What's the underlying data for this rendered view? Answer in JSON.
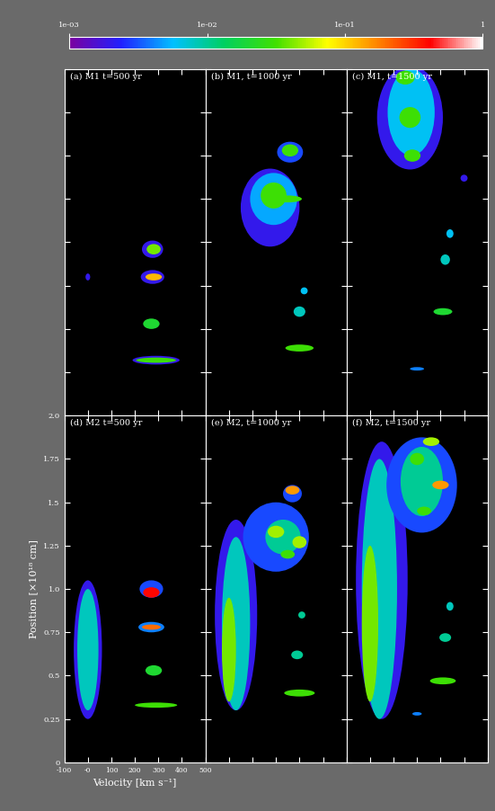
{
  "colorbar": {
    "range": [
      0.001,
      1
    ],
    "log": true,
    "ticks": [
      {
        "value": 0.001,
        "label": "1e-03"
      },
      {
        "value": 0.01,
        "label": "1e-02"
      },
      {
        "value": 0.1,
        "label": "1e-01"
      },
      1
    ]
  },
  "chart_data": [
    {
      "type": "heatmap",
      "title": "(a) M1 t=500 yr",
      "tick_labels": false,
      "xlim": [
        -100,
        500
      ],
      "ylim": [
        0,
        2.0
      ],
      "xticks": [
        -100,
        {
          "value": 0,
          "label": "-0"
        },
        100,
        200,
        300,
        400,
        500
      ],
      "yticks": [
        0,
        0.25,
        0.5,
        0.75,
        {
          "value": 1.0,
          "label": "1.0"
        },
        1.25,
        1.5,
        1.75,
        {
          "value": 2.0,
          "label": "2.0"
        }
      ],
      "blobs": [
        {
          "v": 275,
          "p": 0.96,
          "dv": 90,
          "dp": 0.1,
          "value": 0.002
        },
        {
          "v": 280,
          "p": 0.96,
          "dv": 60,
          "dp": 0.06,
          "value": 0.04
        },
        {
          "v": 275,
          "p": 0.8,
          "dv": 100,
          "dp": 0.08,
          "value": 0.002
        },
        {
          "v": 280,
          "p": 0.8,
          "dv": 70,
          "dp": 0.04,
          "value": 0.12
        },
        {
          "v": 270,
          "p": 0.53,
          "dv": 70,
          "dp": 0.06,
          "value": 0.02
        },
        {
          "v": 290,
          "p": 0.32,
          "dv": 200,
          "dp": 0.05,
          "value": 0.002
        },
        {
          "v": 290,
          "p": 0.32,
          "dv": 170,
          "dp": 0.03,
          "value": 0.03
        },
        {
          "v": 0,
          "p": 0.8,
          "dv": 20,
          "dp": 0.04,
          "value": 0.002
        }
      ]
    },
    {
      "type": "heatmap",
      "title": "(b) M1, t=1000 yr",
      "tick_labels": false,
      "xlim": [
        -100,
        500
      ],
      "ylim": [
        0,
        2.0
      ],
      "xticks": [
        -100,
        {
          "value": 0,
          "label": "-0"
        },
        100,
        200,
        300,
        400,
        500
      ],
      "yticks": [
        0,
        0.25,
        0.5,
        0.75,
        {
          "value": 1.0,
          "label": "1.0"
        },
        1.25,
        1.5,
        1.75,
        {
          "value": 2.0,
          "label": "2.0"
        }
      ],
      "blobs": [
        {
          "v": 175,
          "p": 1.2,
          "dv": 250,
          "dp": 0.45,
          "value": 0.002
        },
        {
          "v": 190,
          "p": 1.25,
          "dv": 200,
          "dp": 0.3,
          "value": 0.005
        },
        {
          "v": 190,
          "p": 1.27,
          "dv": 110,
          "dp": 0.15,
          "value": 0.03
        },
        {
          "v": 250,
          "p": 1.25,
          "dv": 120,
          "dp": 0.04,
          "value": 0.03
        },
        {
          "v": 260,
          "p": 1.52,
          "dv": 110,
          "dp": 0.12,
          "value": 0.003
        },
        {
          "v": 260,
          "p": 1.53,
          "dv": 70,
          "dp": 0.07,
          "value": 0.03
        },
        {
          "v": 320,
          "p": 0.72,
          "dv": 30,
          "dp": 0.04,
          "value": 0.006
        },
        {
          "v": 300,
          "p": 0.6,
          "dv": 50,
          "dp": 0.06,
          "value": 0.008
        },
        {
          "v": 300,
          "p": 0.39,
          "dv": 120,
          "dp": 0.04,
          "value": 0.03
        }
      ]
    },
    {
      "type": "heatmap",
      "title": "(c) M1, t=1500 yr",
      "tick_labels": false,
      "xlim": [
        -100,
        500
      ],
      "ylim": [
        0,
        2.0
      ],
      "xticks": [
        -100,
        {
          "value": 0,
          "label": "-0"
        },
        100,
        200,
        300,
        400,
        500
      ],
      "yticks": [
        0,
        0.25,
        0.5,
        0.75,
        {
          "value": 1.0,
          "label": "1.0"
        },
        1.25,
        1.5,
        1.75,
        {
          "value": 2.0,
          "label": "2.0"
        }
      ],
      "blobs": [
        {
          "v": 170,
          "p": 1.72,
          "dv": 280,
          "dp": 0.6,
          "value": 0.002
        },
        {
          "v": 175,
          "p": 1.75,
          "dv": 200,
          "dp": 0.5,
          "value": 0.006
        },
        {
          "v": 150,
          "p": 1.95,
          "dv": 80,
          "dp": 0.08,
          "value": 0.03
        },
        {
          "v": 170,
          "p": 1.72,
          "dv": 90,
          "dp": 0.12,
          "value": 0.03
        },
        {
          "v": 180,
          "p": 1.5,
          "dv": 70,
          "dp": 0.07,
          "value": 0.03
        },
        {
          "v": 400,
          "p": 1.37,
          "dv": 30,
          "dp": 0.04,
          "value": 0.002
        },
        {
          "v": 340,
          "p": 1.05,
          "dv": 30,
          "dp": 0.05,
          "value": 0.006
        },
        {
          "v": 320,
          "p": 0.9,
          "dv": 40,
          "dp": 0.06,
          "value": 0.008
        },
        {
          "v": 310,
          "p": 0.6,
          "dv": 80,
          "dp": 0.04,
          "value": 0.02
        },
        {
          "v": 200,
          "p": 0.27,
          "dv": 60,
          "dp": 0.02,
          "value": 0.004
        }
      ]
    },
    {
      "type": "heatmap",
      "title": "(d) M2 t=500 yr",
      "xlabel": "Velocity [km s⁻¹]",
      "ylabel": "Position [×10¹⁸ cm]",
      "xlim": [
        -100,
        500
      ],
      "ylim": [
        0,
        2.0
      ],
      "xticks": [
        -100,
        {
          "value": 0,
          "label": "-0"
        },
        100,
        200,
        300,
        400,
        500
      ],
      "yticks": [
        0,
        0.25,
        0.5,
        0.75,
        {
          "value": 1.0,
          "label": "1.0"
        },
        1.25,
        1.5,
        1.75,
        {
          "value": 2.0,
          "label": "2.0"
        }
      ],
      "blobs": [
        {
          "v": 0,
          "p": 0.65,
          "dv": 120,
          "dp": 0.8,
          "value": 0.002
        },
        {
          "v": 0,
          "p": 0.65,
          "dv": 90,
          "dp": 0.7,
          "value": 0.008
        },
        {
          "v": 270,
          "p": 1.0,
          "dv": 100,
          "dp": 0.1,
          "value": 0.003
        },
        {
          "v": 270,
          "p": 0.98,
          "dv": 70,
          "dp": 0.06,
          "value": 0.4
        },
        {
          "v": 270,
          "p": 0.78,
          "dv": 110,
          "dp": 0.06,
          "value": 0.004
        },
        {
          "v": 270,
          "p": 0.78,
          "dv": 80,
          "dp": 0.03,
          "value": 0.2
        },
        {
          "v": 280,
          "p": 0.53,
          "dv": 70,
          "dp": 0.06,
          "value": 0.02
        },
        {
          "v": 290,
          "p": 0.33,
          "dv": 180,
          "dp": 0.03,
          "value": 0.03
        }
      ]
    },
    {
      "type": "heatmap",
      "title": "(e) M2, t=1000 yr",
      "tick_labels": false,
      "xlim": [
        -100,
        500
      ],
      "ylim": [
        0,
        2.0
      ],
      "xticks": [
        -100,
        {
          "value": 0,
          "label": "-0"
        },
        100,
        200,
        300,
        400,
        500
      ],
      "yticks": [
        0,
        0.25,
        0.5,
        0.75,
        {
          "value": 1.0,
          "label": "1.0"
        },
        1.25,
        1.5,
        1.75,
        {
          "value": 2.0,
          "label": "2.0"
        }
      ],
      "blobs": [
        {
          "v": 30,
          "p": 0.85,
          "dv": 180,
          "dp": 1.1,
          "value": 0.002
        },
        {
          "v": 30,
          "p": 0.8,
          "dv": 120,
          "dp": 1.0,
          "value": 0.008
        },
        {
          "v": 0,
          "p": 0.65,
          "dv": 60,
          "dp": 0.6,
          "value": 0.04
        },
        {
          "v": 200,
          "p": 1.3,
          "dv": 280,
          "dp": 0.4,
          "value": 0.003
        },
        {
          "v": 230,
          "p": 1.3,
          "dv": 150,
          "dp": 0.2,
          "value": 0.01
        },
        {
          "v": 200,
          "p": 1.33,
          "dv": 70,
          "dp": 0.07,
          "value": 0.05
        },
        {
          "v": 300,
          "p": 1.27,
          "dv": 60,
          "dp": 0.07,
          "value": 0.05
        },
        {
          "v": 250,
          "p": 1.2,
          "dv": 60,
          "dp": 0.05,
          "value": 0.03
        },
        {
          "v": 270,
          "p": 1.55,
          "dv": 80,
          "dp": 0.1,
          "value": 0.003
        },
        {
          "v": 270,
          "p": 1.57,
          "dv": 60,
          "dp": 0.05,
          "value": 0.15
        },
        {
          "v": 310,
          "p": 0.85,
          "dv": 30,
          "dp": 0.04,
          "value": 0.01
        },
        {
          "v": 290,
          "p": 0.62,
          "dv": 50,
          "dp": 0.05,
          "value": 0.01
        },
        {
          "v": 300,
          "p": 0.4,
          "dv": 130,
          "dp": 0.04,
          "value": 0.03
        }
      ]
    },
    {
      "type": "heatmap",
      "title": "(f) M2, t=1500 yr",
      "tick_labels": false,
      "xlim": [
        -100,
        500
      ],
      "ylim": [
        0,
        2.0
      ],
      "xticks": [
        -100,
        {
          "value": 0,
          "label": "-0"
        },
        100,
        200,
        300,
        400,
        500
      ],
      "yticks": [
        0,
        0.25,
        0.5,
        0.75,
        {
          "value": 1.0,
          "label": "1.0"
        },
        1.25,
        1.5,
        1.75,
        {
          "value": 2.0,
          "label": "2.0"
        }
      ],
      "blobs": [
        {
          "v": 50,
          "p": 1.05,
          "dv": 220,
          "dp": 1.6,
          "value": 0.002
        },
        {
          "v": 40,
          "p": 1.0,
          "dv": 150,
          "dp": 1.5,
          "value": 0.008
        },
        {
          "v": 0,
          "p": 0.8,
          "dv": 70,
          "dp": 0.9,
          "value": 0.04
        },
        {
          "v": 220,
          "p": 1.6,
          "dv": 300,
          "dp": 0.55,
          "value": 0.003
        },
        {
          "v": 220,
          "p": 1.62,
          "dv": 180,
          "dp": 0.4,
          "value": 0.01
        },
        {
          "v": 260,
          "p": 1.85,
          "dv": 70,
          "dp": 0.05,
          "value": 0.05
        },
        {
          "v": 200,
          "p": 1.75,
          "dv": 60,
          "dp": 0.07,
          "value": 0.03
        },
        {
          "v": 300,
          "p": 1.6,
          "dv": 70,
          "dp": 0.05,
          "value": 0.15
        },
        {
          "v": 230,
          "p": 1.45,
          "dv": 60,
          "dp": 0.05,
          "value": 0.03
        },
        {
          "v": 340,
          "p": 0.9,
          "dv": 30,
          "dp": 0.05,
          "value": 0.008
        },
        {
          "v": 320,
          "p": 0.72,
          "dv": 50,
          "dp": 0.05,
          "value": 0.01
        },
        {
          "v": 310,
          "p": 0.47,
          "dv": 110,
          "dp": 0.04,
          "value": 0.03
        },
        {
          "v": 200,
          "p": 0.28,
          "dv": 40,
          "dp": 0.02,
          "value": 0.004
        }
      ]
    }
  ]
}
